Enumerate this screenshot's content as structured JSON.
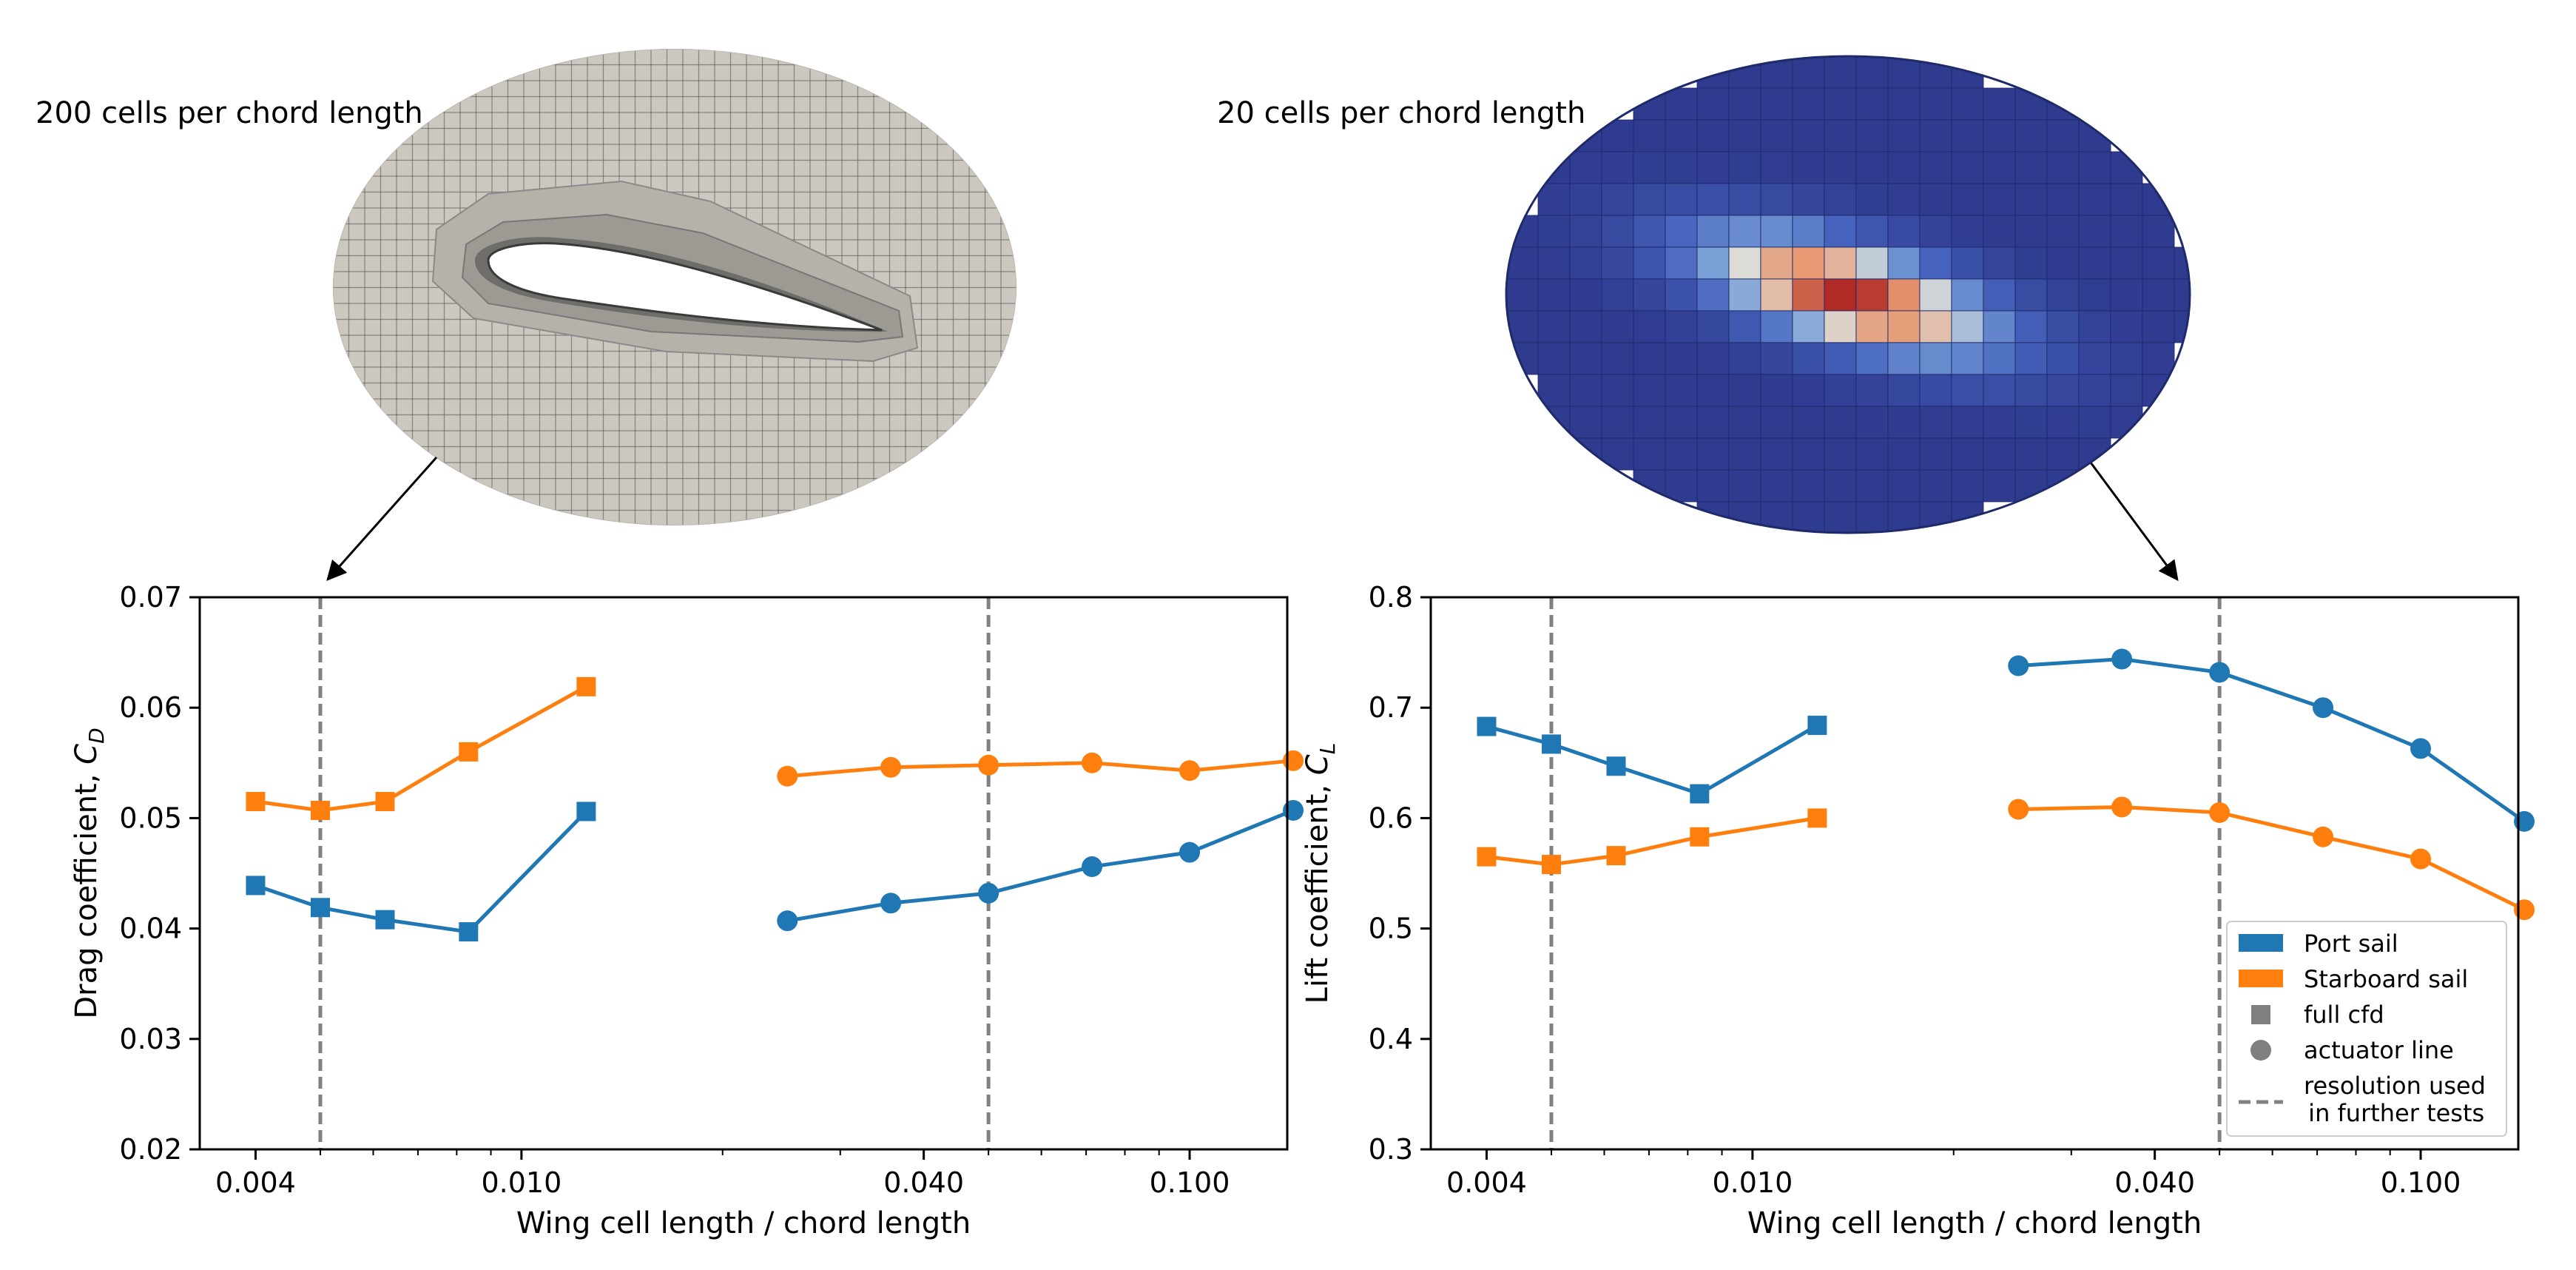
{
  "colors": {
    "port": "#1f77b4",
    "starboard": "#ff7f0e",
    "marker_gray": "#7f7f7f",
    "mesh_bg": "#ccc8c0",
    "mesh_line": "#4a4a4a",
    "field_bg": "#2f3b8f"
  },
  "mesh_panels": [
    {
      "caption": "200 cells per chord length"
    },
    {
      "caption": "20 cells per chord length"
    }
  ],
  "chart_data": [
    {
      "type": "line",
      "xscale": "log",
      "xlim": [
        0.0033,
        0.14
      ],
      "ylim": [
        0.02,
        0.07
      ],
      "xlabel": "Wing cell length / chord length",
      "ylabel_main": "Drag coefficient, ",
      "ylabel_sym": "C",
      "ylabel_sub": "D",
      "xticks": [
        0.004,
        0.01,
        0.04,
        0.1
      ],
      "xtick_labels": [
        "0.004",
        "0.010",
        "0.040",
        "0.100"
      ],
      "yticks": [
        0.02,
        0.03,
        0.04,
        0.05,
        0.06,
        0.07
      ],
      "ytick_labels": [
        "0.02",
        "0.03",
        "0.04",
        "0.05",
        "0.06",
        "0.07"
      ],
      "vlines": [
        0.005,
        0.05
      ],
      "series": [
        {
          "name": "Port sail",
          "method": "full cfd",
          "color": "port",
          "marker": "square",
          "x": [
            0.004,
            0.005,
            0.00625,
            0.008333,
            0.0125
          ],
          "y": [
            0.0439,
            0.0419,
            0.0408,
            0.0397,
            0.0506
          ]
        },
        {
          "name": "Starboard sail",
          "method": "full cfd",
          "color": "starboard",
          "marker": "square",
          "x": [
            0.004,
            0.005,
            0.00625,
            0.008333,
            0.0125
          ],
          "y": [
            0.0515,
            0.0507,
            0.0515,
            0.056,
            0.0619
          ]
        },
        {
          "name": "Port sail",
          "method": "actuator line",
          "color": "port",
          "marker": "circle",
          "x": [
            0.025,
            0.03571,
            0.05,
            0.07143,
            0.1,
            0.1429
          ],
          "y": [
            0.0407,
            0.0423,
            0.0432,
            0.0456,
            0.0469,
            0.0507
          ]
        },
        {
          "name": "Starboard sail",
          "method": "actuator line",
          "color": "starboard",
          "marker": "circle",
          "x": [
            0.025,
            0.03571,
            0.05,
            0.07143,
            0.1,
            0.1429
          ],
          "y": [
            0.0538,
            0.0546,
            0.0548,
            0.055,
            0.0543,
            0.0552
          ]
        }
      ]
    },
    {
      "type": "line",
      "xscale": "log",
      "xlim": [
        0.0033,
        0.14
      ],
      "ylim": [
        0.3,
        0.8
      ],
      "xlabel": "Wing cell length / chord length",
      "ylabel_main": "Lift coefficient, ",
      "ylabel_sym": "C",
      "ylabel_sub": "L",
      "xticks": [
        0.004,
        0.01,
        0.04,
        0.1
      ],
      "xtick_labels": [
        "0.004",
        "0.010",
        "0.040",
        "0.100"
      ],
      "yticks": [
        0.3,
        0.4,
        0.5,
        0.6,
        0.7,
        0.8
      ],
      "ytick_labels": [
        "0.3",
        "0.4",
        "0.5",
        "0.6",
        "0.7",
        "0.8"
      ],
      "vlines": [
        0.005,
        0.05
      ],
      "series": [
        {
          "name": "Port sail",
          "method": "full cfd",
          "color": "port",
          "marker": "square",
          "x": [
            0.004,
            0.005,
            0.00625,
            0.008333,
            0.0125
          ],
          "y": [
            0.683,
            0.667,
            0.647,
            0.622,
            0.684
          ]
        },
        {
          "name": "Starboard sail",
          "method": "full cfd",
          "color": "starboard",
          "marker": "square",
          "x": [
            0.004,
            0.005,
            0.00625,
            0.008333,
            0.0125
          ],
          "y": [
            0.565,
            0.558,
            0.566,
            0.583,
            0.6
          ]
        },
        {
          "name": "Port sail",
          "method": "actuator line",
          "color": "port",
          "marker": "circle",
          "x": [
            0.025,
            0.03571,
            0.05,
            0.07143,
            0.1,
            0.1429
          ],
          "y": [
            0.738,
            0.744,
            0.732,
            0.7,
            0.663,
            0.597
          ]
        },
        {
          "name": "Starboard sail",
          "method": "actuator line",
          "color": "starboard",
          "marker": "circle",
          "x": [
            0.025,
            0.03571,
            0.05,
            0.07143,
            0.1,
            0.1429
          ],
          "y": [
            0.608,
            0.61,
            0.605,
            0.583,
            0.563,
            0.517
          ]
        }
      ],
      "legend": {
        "position": "lower-right",
        "entries": [
          {
            "label": "Port sail",
            "kind": "patch",
            "color": "port"
          },
          {
            "label": "Starboard sail",
            "kind": "patch",
            "color": "starboard"
          },
          {
            "label": "full cfd",
            "kind": "square",
            "color": "marker_gray"
          },
          {
            "label": "actuator line",
            "kind": "circle",
            "color": "marker_gray"
          },
          {
            "label": "resolution used",
            "label2": " in further tests",
            "kind": "dashed",
            "color": "marker_gray"
          }
        ]
      }
    }
  ]
}
